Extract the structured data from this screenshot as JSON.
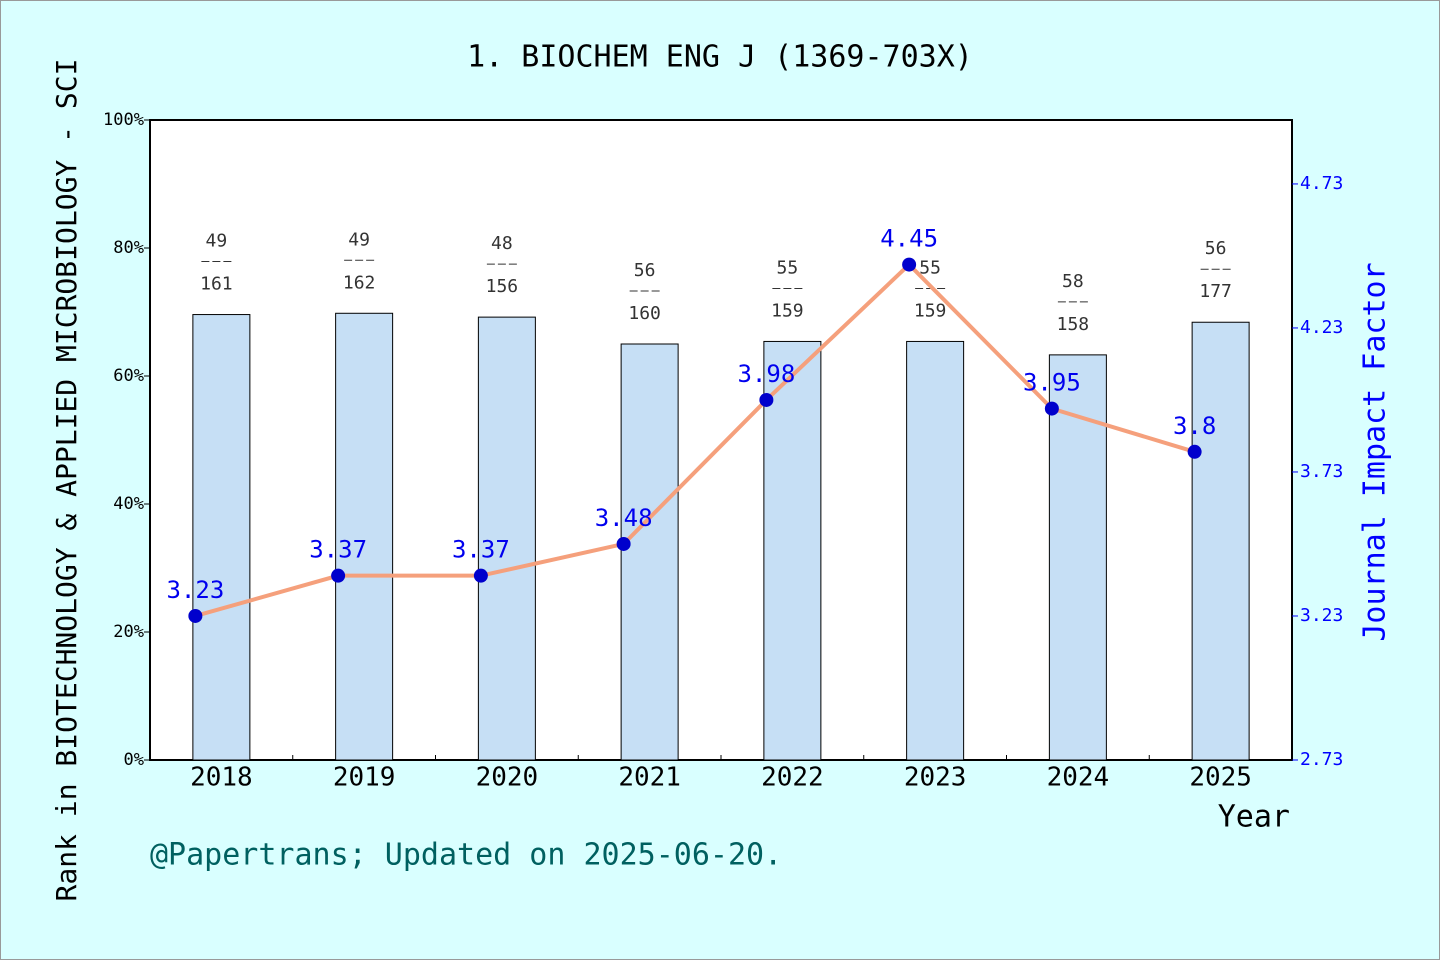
{
  "chart_data": {
    "type": "bar_line",
    "title": "1. BIOCHEM ENG J (1369-703X)",
    "y_label": "Rank in BIOTECHNOLOGY & APPLIED MICROBIOLOGY - SCI",
    "y2_label": "Journal Impact Factor",
    "x_label": "Year",
    "footnote": "@Papertrans; Updated on 2025-06-20.",
    "categories": [
      "2018",
      "2019",
      "2020",
      "2021",
      "2022",
      "2023",
      "2024",
      "2025"
    ],
    "bar_values": [
      69.6,
      69.8,
      69.2,
      65.0,
      65.4,
      65.4,
      63.3,
      68.4
    ],
    "ranks": [
      49,
      49,
      48,
      56,
      55,
      55,
      58,
      56
    ],
    "totals": [
      161,
      162,
      156,
      160,
      159,
      159,
      158,
      177
    ],
    "impact_factors": [
      3.23,
      3.37,
      3.37,
      3.48,
      3.98,
      4.45,
      3.95,
      3.8
    ],
    "bar_color": "#c6dff5",
    "line_color": "#f5a07c",
    "point_color": "#0000cc",
    "ylim": [
      0,
      100
    ],
    "yticks": [
      {
        "value": 0,
        "label": "0%"
      },
      {
        "value": 20,
        "label": "20%"
      },
      {
        "value": 40,
        "label": "40%"
      },
      {
        "value": 60,
        "label": "60%"
      },
      {
        "value": 80,
        "label": "80%"
      },
      {
        "value": 100,
        "label": "100%"
      }
    ],
    "y2lim": [
      2.73,
      4.952
    ],
    "y2ticks": [
      2.73,
      3.23,
      3.73,
      4.23,
      4.73
    ]
  }
}
